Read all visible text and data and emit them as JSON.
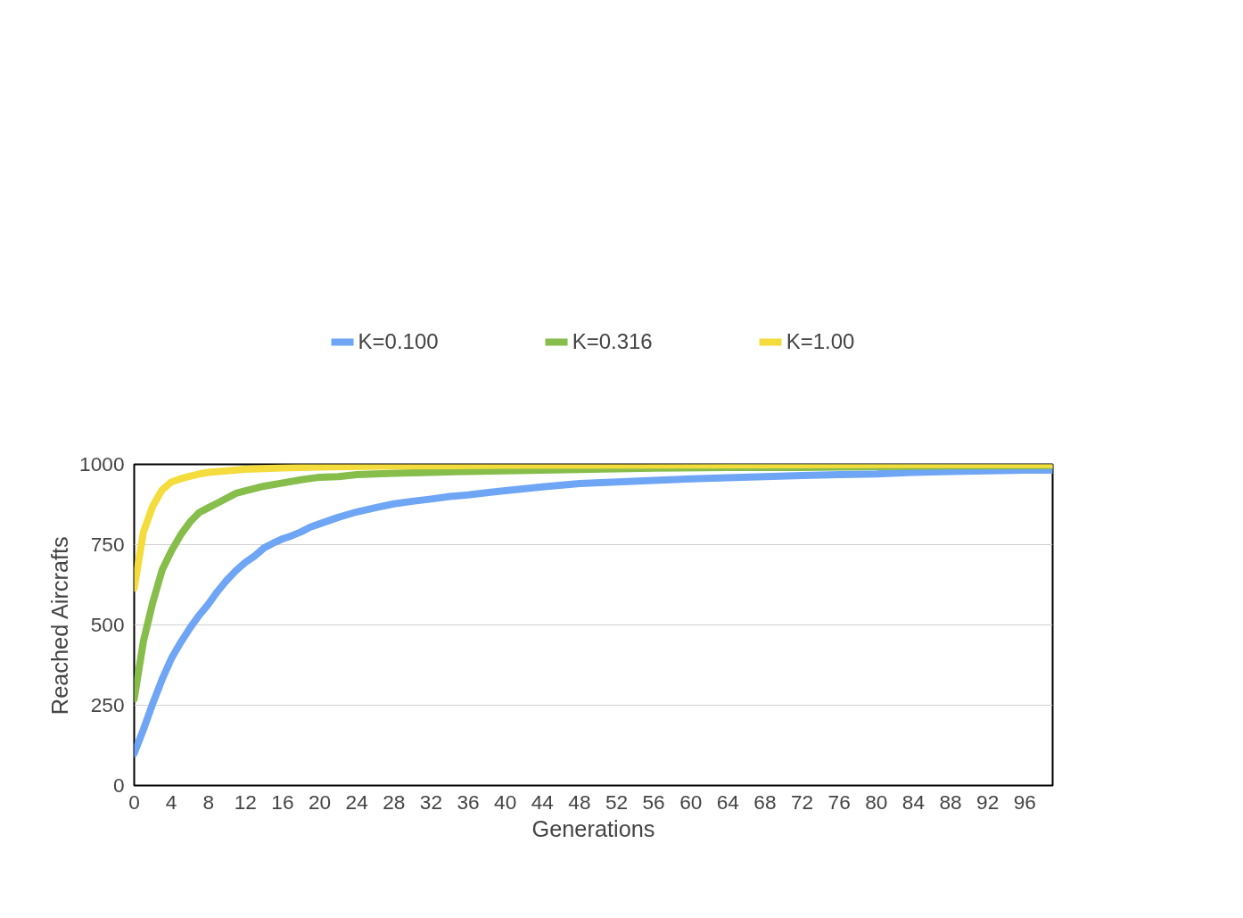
{
  "chart_data": {
    "type": "line",
    "xlabel": "Generations",
    "ylabel": "Reached Aircrafts",
    "xlim": [
      0,
      99
    ],
    "xticks": [
      0,
      4,
      8,
      12,
      16,
      20,
      24,
      28,
      32,
      36,
      40,
      44,
      48,
      52,
      56,
      60,
      64,
      68,
      72,
      76,
      80,
      84,
      88,
      92,
      96
    ],
    "ylim": [
      0,
      1000
    ],
    "yticks": [
      0,
      250,
      500,
      750,
      1000
    ],
    "grid": "y",
    "legend": "top",
    "marker": "none",
    "line_style": "solid",
    "series": [
      {
        "name": "K=0.100",
        "color": "#6fa5f5",
        "x": [
          0,
          1,
          2,
          3,
          4,
          5,
          6,
          7,
          8,
          9,
          10,
          11,
          12,
          13,
          14,
          15,
          16,
          17,
          18,
          19,
          20,
          22,
          24,
          26,
          28,
          30,
          32,
          34,
          36,
          38,
          40,
          44,
          48,
          52,
          56,
          60,
          64,
          68,
          72,
          76,
          80,
          84,
          88,
          92,
          96,
          99
        ],
        "values": [
          100,
          175,
          255,
          330,
          395,
          445,
          490,
          530,
          565,
          605,
          640,
          670,
          695,
          715,
          740,
          755,
          768,
          778,
          790,
          805,
          815,
          835,
          852,
          865,
          877,
          885,
          892,
          900,
          905,
          912,
          918,
          930,
          940,
          945,
          950,
          955,
          958,
          962,
          965,
          968,
          970,
          975,
          978,
          980,
          982,
          982
        ]
      },
      {
        "name": "K=0.316",
        "color": "#86bd4b",
        "x": [
          0,
          1,
          2,
          3,
          4,
          5,
          6,
          7,
          8,
          9,
          10,
          11,
          12,
          14,
          16,
          18,
          20,
          22,
          24,
          28,
          32,
          36,
          40,
          48,
          56,
          64,
          72,
          80,
          88,
          99
        ],
        "values": [
          270,
          450,
          570,
          670,
          730,
          780,
          820,
          850,
          865,
          880,
          895,
          910,
          918,
          932,
          942,
          952,
          960,
          962,
          968,
          972,
          975,
          978,
          980,
          984,
          988,
          990,
          990,
          993,
          995,
          996
        ]
      },
      {
        "name": "K=1.00",
        "color": "#f4dc3c",
        "x": [
          0,
          1,
          2,
          3,
          4,
          5,
          6,
          7,
          8,
          10,
          12,
          16,
          20,
          28,
          40,
          60,
          80,
          99
        ],
        "values": [
          615,
          790,
          870,
          920,
          945,
          955,
          963,
          970,
          975,
          980,
          985,
          989,
          992,
          995,
          997,
          998,
          999,
          999
        ]
      }
    ]
  }
}
